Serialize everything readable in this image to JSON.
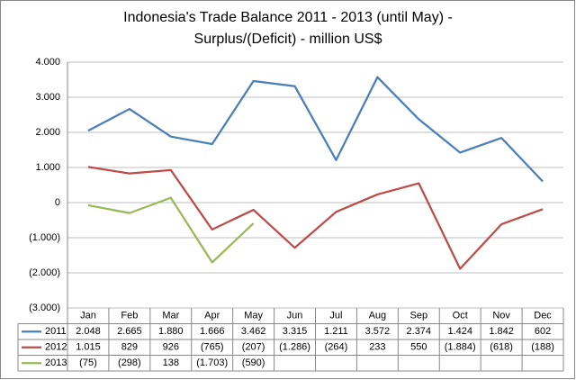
{
  "chart_data": {
    "type": "line",
    "title": [
      "Indonesia's Trade Balance 2011 - 2013 (until May) -",
      "Surplus/(Deficit) - million US$"
    ],
    "categories": [
      "Jan",
      "Feb",
      "Mar",
      "Apr",
      "May",
      "Jun",
      "Jul",
      "Aug",
      "Sep",
      "Oct",
      "Nov",
      "Dec"
    ],
    "series": [
      {
        "name": "2011",
        "color": "#4a7ebb",
        "values": [
          2048,
          2665,
          1880,
          1666,
          3462,
          3315,
          1211,
          3572,
          2374,
          1424,
          1842,
          602
        ],
        "value_labels": [
          "2.048",
          "2.665",
          "1.880",
          "1.666",
          "3.462",
          "3.315",
          "1.211",
          "3.572",
          "2.374",
          "1.424",
          "1.842",
          "602"
        ]
      },
      {
        "name": "2012",
        "color": "#be4b48",
        "values": [
          1015,
          829,
          926,
          -765,
          -207,
          -1286,
          -264,
          233,
          550,
          -1884,
          -618,
          -188
        ],
        "value_labels": [
          "1.015",
          "829",
          "926",
          "(765)",
          "(207)",
          "(1.286)",
          "(264)",
          "233",
          "550",
          "(1.884)",
          "(618)",
          "(188)"
        ]
      },
      {
        "name": "2013",
        "color": "#98b954",
        "values": [
          -75,
          -298,
          138,
          -1703,
          -590,
          null,
          null,
          null,
          null,
          null,
          null,
          null
        ],
        "value_labels": [
          "(75)",
          "(298)",
          "138",
          "(1.703)",
          "(590)",
          null,
          null,
          null,
          null,
          null,
          null,
          null
        ]
      }
    ],
    "ylim": [
      -3000,
      4000
    ],
    "yticks": [
      {
        "value": -3000,
        "label": "(3.000)"
      },
      {
        "value": -2000,
        "label": "(2.000)"
      },
      {
        "value": -1000,
        "label": "(1.000)"
      },
      0,
      {
        "value": 1000,
        "label": "1.000"
      },
      {
        "value": 2000,
        "label": "2.000"
      },
      {
        "value": 3000,
        "label": "3.000"
      },
      {
        "value": 4000,
        "label": "4.000"
      }
    ],
    "grid": true
  }
}
